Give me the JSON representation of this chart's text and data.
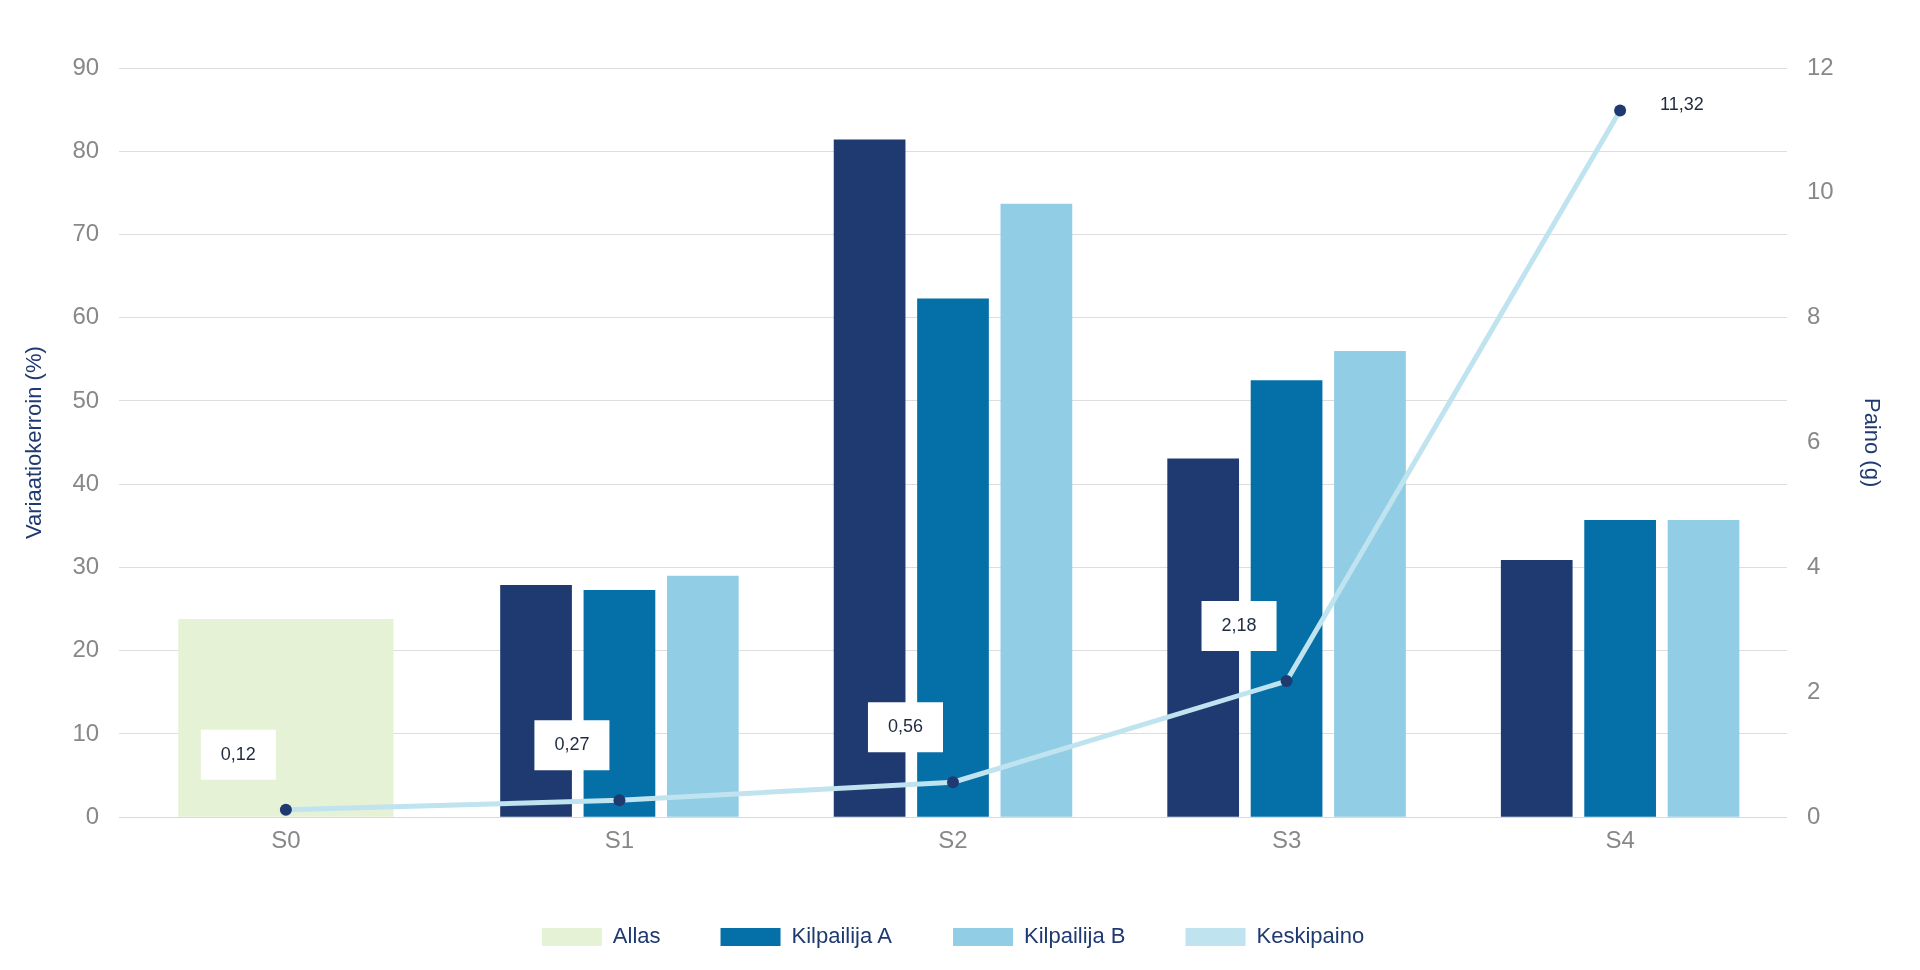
{
  "chart_data": {
    "type": "bar",
    "categories": [
      "S0",
      "S1",
      "S2",
      "S3",
      "S4"
    ],
    "ylabel": "Variaatiokerroin (%)",
    "y2label": "Paino (g)",
    "ylim": [
      0,
      90
    ],
    "yticks": [
      0,
      10,
      20,
      30,
      40,
      50,
      60,
      70,
      80,
      90
    ],
    "y2lim": [
      0,
      12
    ],
    "y2ticks": [
      0,
      2,
      4,
      6,
      8,
      10,
      12
    ],
    "grid": "y",
    "legend": "bottom",
    "series": [
      {
        "name": "Allas",
        "color": "#e6f2d5",
        "values": [
          23.8,
          null,
          null,
          null,
          null
        ]
      },
      {
        "color": "#1f3a70",
        "values": [
          null,
          27.9,
          81.4,
          43.1,
          30.9
        ]
      },
      {
        "name": "Kilpailija A",
        "color": "#0570a8",
        "values": [
          null,
          27.3,
          62.3,
          52.5,
          35.7
        ]
      },
      {
        "name": "Kilpailija B",
        "color": "#92cde6",
        "values": [
          null,
          29.0,
          73.7,
          56.0,
          35.7
        ]
      },
      {
        "name": "Keskipaino",
        "type": "line",
        "axis": "y2",
        "color": "#bfe3ef",
        "marker": "circle",
        "values": [
          0.12,
          0.27,
          0.56,
          2.18,
          11.32
        ],
        "value_labels": [
          "0,12",
          "0,27",
          "0,56",
          "2,18",
          "11,32"
        ]
      }
    ]
  }
}
